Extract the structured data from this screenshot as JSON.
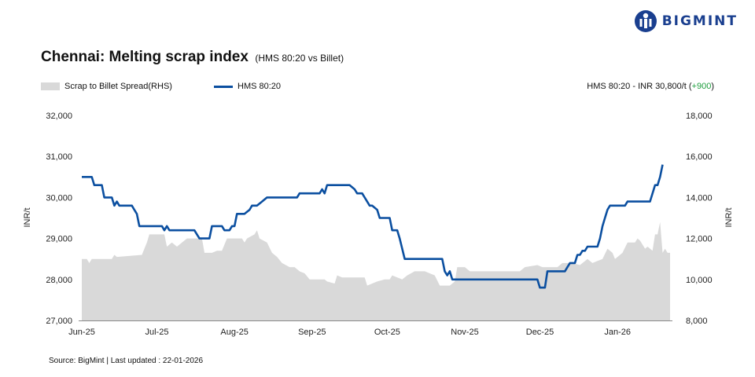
{
  "brand": {
    "name": "BIGMINT",
    "icon": "bigmint-logo-icon",
    "color": "#1a3f8f"
  },
  "annotation": {
    "text": "HMS 80:20 - INR 30,800/t (",
    "delta": "+900",
    "close": ")",
    "delta_color": "#1e9e3e"
  },
  "source": "Source: BigMint | Last updated : 22-01-2026",
  "chart_data": {
    "type": "line",
    "title": "Chennai: Melting scrap index",
    "subtitle": "(HMS 80:20 vs Billet)",
    "ylabel_left": "INR/t",
    "ylabel_right": "INR/t",
    "ylim_left": [
      27000,
      32000
    ],
    "ylim_right": [
      8000,
      18000
    ],
    "yticks_left": [
      "27,000",
      "28,000",
      "29,000",
      "30,000",
      "31,000",
      "32,000"
    ],
    "yticks_right": [
      "8,000",
      "10,000",
      "12,000",
      "14,000",
      "16,000",
      "18,000"
    ],
    "xticks": [
      "Jun-25",
      "Jul-25",
      "Aug-25",
      "Sep-25",
      "Oct-25",
      "Nov-25",
      "Dec-25",
      "Jan-26"
    ],
    "x_range_days": [
      0,
      235
    ],
    "xtick_days": [
      0,
      30,
      61,
      92,
      122,
      153,
      183,
      214
    ],
    "grid": false,
    "legend_position": "top-left",
    "series": [
      {
        "name": "Scrap to Billet Spread(RHS)",
        "kind": "area",
        "axis": "right",
        "color": "#d9d9d9",
        "points": [
          [
            0,
            11000
          ],
          [
            2,
            11000
          ],
          [
            3,
            10800
          ],
          [
            4,
            11000
          ],
          [
            12,
            11000
          ],
          [
            13,
            11200
          ],
          [
            14,
            11100
          ],
          [
            24,
            11200
          ],
          [
            26,
            11800
          ],
          [
            27,
            12200
          ],
          [
            33,
            12200
          ],
          [
            34,
            11600
          ],
          [
            36,
            11800
          ],
          [
            38,
            11600
          ],
          [
            42,
            12000
          ],
          [
            48,
            12000
          ],
          [
            49,
            11300
          ],
          [
            52,
            11300
          ],
          [
            54,
            11400
          ],
          [
            56,
            11400
          ],
          [
            58,
            12000
          ],
          [
            64,
            12000
          ],
          [
            65,
            11800
          ],
          [
            66,
            12000
          ],
          [
            69,
            12200
          ],
          [
            70,
            12400
          ],
          [
            71,
            12000
          ],
          [
            74,
            11800
          ],
          [
            76,
            11300
          ],
          [
            78,
            11100
          ],
          [
            80,
            10800
          ],
          [
            83,
            10600
          ],
          [
            85,
            10600
          ],
          [
            87,
            10400
          ],
          [
            89,
            10300
          ],
          [
            91,
            10000
          ],
          [
            97,
            10000
          ],
          [
            98,
            9900
          ],
          [
            101,
            9800
          ],
          [
            102,
            10200
          ],
          [
            104,
            10100
          ],
          [
            113,
            10100
          ],
          [
            114,
            9700
          ],
          [
            118,
            9900
          ],
          [
            121,
            10000
          ],
          [
            123,
            10000
          ],
          [
            124,
            10200
          ],
          [
            126,
            10100
          ],
          [
            128,
            10000
          ],
          [
            130,
            10200
          ],
          [
            133,
            10400
          ],
          [
            137,
            10400
          ],
          [
            139,
            10300
          ],
          [
            141,
            10200
          ],
          [
            143,
            9700
          ],
          [
            147,
            9700
          ],
          [
            149,
            9900
          ],
          [
            150,
            10600
          ],
          [
            153,
            10600
          ],
          [
            155,
            10400
          ],
          [
            172,
            10400
          ],
          [
            175,
            10400
          ],
          [
            177,
            10600
          ],
          [
            182,
            10700
          ],
          [
            184,
            10600
          ],
          [
            190,
            10600
          ],
          [
            192,
            10800
          ],
          [
            196,
            10800
          ],
          [
            199,
            10700
          ],
          [
            202,
            11000
          ],
          [
            204,
            10800
          ],
          [
            206,
            10900
          ],
          [
            208,
            11000
          ],
          [
            210,
            11500
          ],
          [
            212,
            11300
          ],
          [
            213,
            11000
          ],
          [
            214,
            11100
          ],
          [
            216,
            11300
          ],
          [
            218,
            11800
          ],
          [
            221,
            11800
          ],
          [
            222,
            12000
          ],
          [
            223,
            11900
          ],
          [
            225,
            11500
          ],
          [
            226,
            11600
          ],
          [
            228,
            11400
          ],
          [
            229,
            12200
          ],
          [
            230,
            12200
          ],
          [
            231,
            12800
          ],
          [
            232,
            11300
          ],
          [
            233,
            11500
          ],
          [
            234,
            11300
          ],
          [
            235,
            11300
          ]
        ]
      },
      {
        "name": "HMS 80:20",
        "kind": "line",
        "axis": "left",
        "color": "#0b4fa0",
        "points": [
          [
            0,
            30500
          ],
          [
            4,
            30500
          ],
          [
            5,
            30300
          ],
          [
            8,
            30300
          ],
          [
            9,
            30000
          ],
          [
            12,
            30000
          ],
          [
            13,
            29800
          ],
          [
            14,
            29900
          ],
          [
            15,
            29800
          ],
          [
            20,
            29800
          ],
          [
            21,
            29700
          ],
          [
            22,
            29600
          ],
          [
            23,
            29300
          ],
          [
            31,
            29300
          ],
          [
            32,
            29300
          ],
          [
            33,
            29200
          ],
          [
            34,
            29300
          ],
          [
            35,
            29200
          ],
          [
            45,
            29200
          ],
          [
            46,
            29100
          ],
          [
            47,
            29000
          ],
          [
            51,
            29000
          ],
          [
            52,
            29300
          ],
          [
            56,
            29300
          ],
          [
            57,
            29200
          ],
          [
            59,
            29200
          ],
          [
            60,
            29300
          ],
          [
            61,
            29300
          ],
          [
            62,
            29600
          ],
          [
            65,
            29600
          ],
          [
            67,
            29700
          ],
          [
            68,
            29800
          ],
          [
            70,
            29800
          ],
          [
            72,
            29900
          ],
          [
            74,
            30000
          ],
          [
            86,
            30000
          ],
          [
            87,
            30100
          ],
          [
            95,
            30100
          ],
          [
            96,
            30200
          ],
          [
            97,
            30100
          ],
          [
            98,
            30300
          ],
          [
            107,
            30300
          ],
          [
            109,
            30200
          ],
          [
            110,
            30100
          ],
          [
            112,
            30100
          ],
          [
            113,
            30000
          ],
          [
            115,
            29800
          ],
          [
            116,
            29800
          ],
          [
            118,
            29700
          ],
          [
            119,
            29500
          ],
          [
            123,
            29500
          ],
          [
            124,
            29200
          ],
          [
            126,
            29200
          ],
          [
            127,
            29000
          ],
          [
            129,
            28500
          ],
          [
            130,
            28500
          ],
          [
            132,
            28500
          ],
          [
            140,
            28500
          ],
          [
            141,
            28500
          ],
          [
            144,
            28500
          ],
          [
            145,
            28200
          ],
          [
            146,
            28100
          ],
          [
            147,
            28200
          ],
          [
            148,
            28000
          ],
          [
            182,
            28000
          ],
          [
            183,
            27800
          ],
          [
            185,
            27800
          ],
          [
            186,
            28200
          ],
          [
            193,
            28200
          ],
          [
            194,
            28300
          ],
          [
            195,
            28400
          ],
          [
            197,
            28400
          ],
          [
            198,
            28600
          ],
          [
            199,
            28600
          ],
          [
            200,
            28700
          ],
          [
            201,
            28700
          ],
          [
            202,
            28800
          ],
          [
            206,
            28800
          ],
          [
            207,
            29000
          ],
          [
            208,
            29300
          ],
          [
            209,
            29500
          ],
          [
            210,
            29700
          ],
          [
            211,
            29800
          ],
          [
            217,
            29800
          ],
          [
            218,
            29900
          ],
          [
            227,
            29900
          ],
          [
            228,
            30100
          ],
          [
            229,
            30300
          ],
          [
            230,
            30300
          ],
          [
            231,
            30500
          ],
          [
            232,
            30800
          ]
        ]
      }
    ]
  }
}
